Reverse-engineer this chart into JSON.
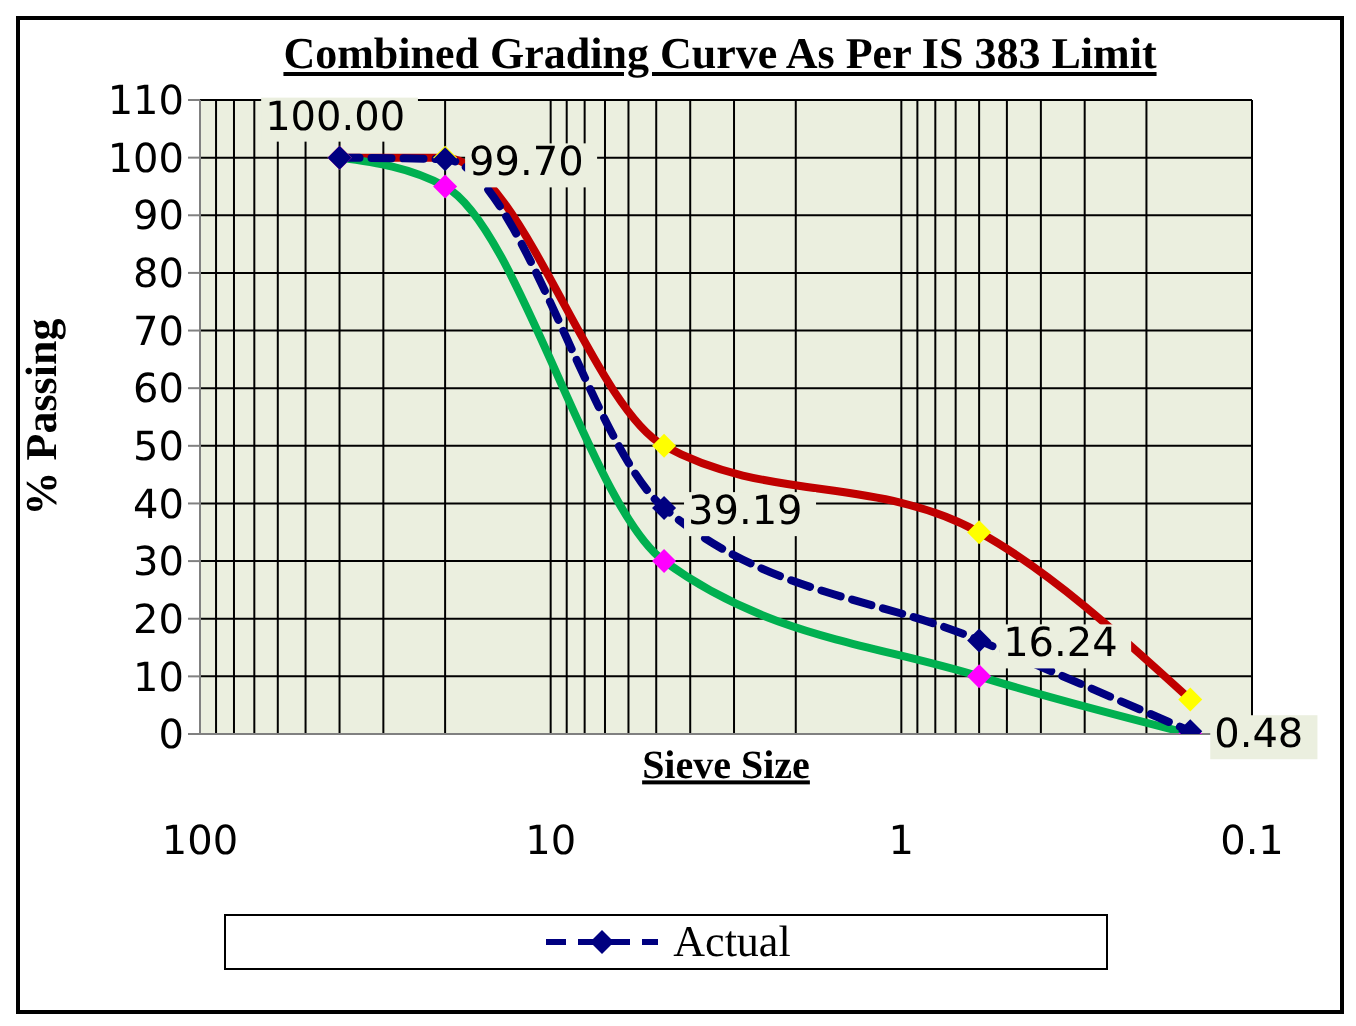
{
  "chart_data": {
    "type": "line",
    "title": "Combined Grading Curve As Per IS 383 Limit",
    "xlabel": "Sieve Size",
    "ylabel": "% Passing",
    "x": [
      40,
      20,
      4.75,
      0.6,
      0.15
    ],
    "series": [
      {
        "color": "#c00000",
        "colors": [
          "#ffff00",
          "#ffff00",
          "#ffff00",
          "#ffff00",
          "#ffff00"
        ],
        "line_style": "solid",
        "values": [
          100,
          100,
          50,
          35,
          6
        ]
      },
      {
        "color": "#00b050",
        "colors": [
          "#ff00ff",
          "#ff00ff",
          "#ff00ff",
          "#ff00ff",
          "#ff00ff"
        ],
        "line_style": "solid",
        "values": [
          100,
          95,
          30,
          10,
          0
        ]
      },
      {
        "name": "Actual",
        "color": "#000080",
        "line_style": "dashed",
        "values": [
          100,
          99.7,
          39.19,
          16.24,
          0.48
        ],
        "value_labels": [
          "100.00",
          "99.70",
          "39.19",
          "16.24",
          "0.48"
        ]
      }
    ],
    "log": "x",
    "xlim": [
      100,
      0.1
    ],
    "xticks": [
      100,
      {
        "value": 90,
        "label": null
      },
      {
        "value": 80,
        "label": null
      },
      {
        "value": 70,
        "label": null
      },
      {
        "value": 60,
        "label": null
      },
      {
        "value": 50,
        "label": null
      },
      {
        "value": 40,
        "label": null
      },
      {
        "value": 30,
        "label": null
      },
      {
        "value": 20,
        "label": null
      },
      10,
      {
        "value": 9,
        "label": null
      },
      {
        "value": 8,
        "label": null
      },
      {
        "value": 7,
        "label": null
      },
      {
        "value": 6,
        "label": null
      },
      {
        "value": 5,
        "label": null
      },
      {
        "value": 4,
        "label": null
      },
      {
        "value": 3,
        "label": null
      },
      {
        "value": 2,
        "label": null
      },
      1,
      {
        "value": 0.9,
        "label": null
      },
      {
        "value": 0.8,
        "label": null
      },
      {
        "value": 0.7,
        "label": null
      },
      {
        "value": 0.6,
        "label": null
      },
      {
        "value": 0.5,
        "label": null
      },
      {
        "value": 0.4,
        "label": null
      },
      {
        "value": 0.3,
        "label": null
      },
      {
        "value": 0.2,
        "label": null
      },
      0.1
    ],
    "ylim": [
      0,
      110
    ],
    "yticks": [
      0,
      10,
      20,
      30,
      40,
      50,
      60,
      70,
      80,
      90,
      100,
      110
    ],
    "grid": true,
    "legend": "bottom",
    "marker": "diamond"
  }
}
